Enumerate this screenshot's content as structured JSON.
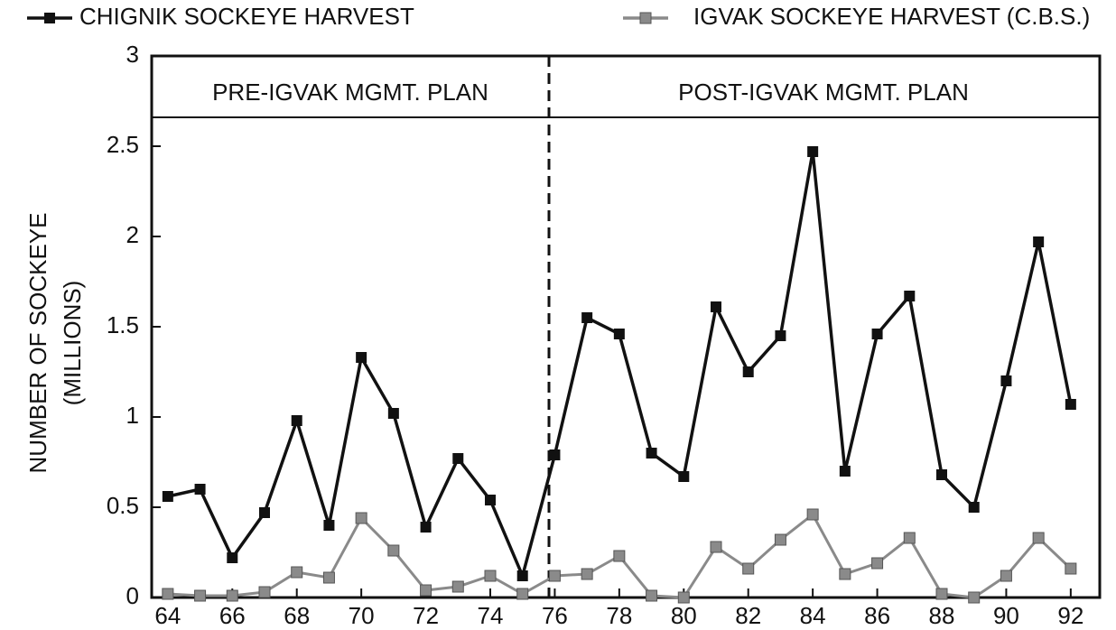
{
  "chart_data": {
    "type": "line",
    "y_label": [
      "NUMBER OF SOCKEYE",
      "(MILLIONS)"
    ],
    "annotations": [
      "PRE-IGVAK MGMT. PLAN",
      "POST-IGVAK MGMT. PLAN"
    ],
    "x": [
      64,
      65,
      66,
      67,
      68,
      69,
      70,
      71,
      72,
      73,
      74,
      75,
      76,
      77,
      78,
      79,
      80,
      81,
      82,
      83,
      84,
      85,
      86,
      87,
      88,
      89,
      90,
      91,
      92
    ],
    "series": [
      {
        "name": "CHIGNIK SOCKEYE HARVEST",
        "color": "#111111",
        "values": [
          0.56,
          0.6,
          0.22,
          0.47,
          0.98,
          0.4,
          1.33,
          1.02,
          0.39,
          0.77,
          0.54,
          0.12,
          0.79,
          1.55,
          1.46,
          0.8,
          0.67,
          1.61,
          1.25,
          1.45,
          2.47,
          0.7,
          1.46,
          1.67,
          0.68,
          0.5,
          1.2,
          1.97,
          1.07
        ]
      },
      {
        "name": "IGVAK SOCKEYE HARVEST (C.B.S.)",
        "color": "#8a8a8a",
        "values": [
          0.02,
          0.01,
          0.01,
          0.03,
          0.14,
          0.11,
          0.44,
          0.26,
          0.04,
          0.06,
          0.12,
          0.02,
          0.12,
          0.13,
          0.23,
          0.01,
          0,
          0.28,
          0.16,
          0.32,
          0.46,
          0.13,
          0.19,
          0.33,
          0.02,
          0,
          0.12,
          0.33,
          0.16
        ]
      }
    ],
    "xlim": [
      63.5,
      92.9
    ],
    "xticks": [
      64,
      66,
      68,
      70,
      72,
      74,
      76,
      78,
      80,
      82,
      84,
      86,
      88,
      90,
      92
    ],
    "ylim": [
      0,
      3
    ],
    "yticks": [
      0,
      0.5,
      1,
      1.5,
      2,
      2.5,
      3
    ],
    "grid": false
  }
}
